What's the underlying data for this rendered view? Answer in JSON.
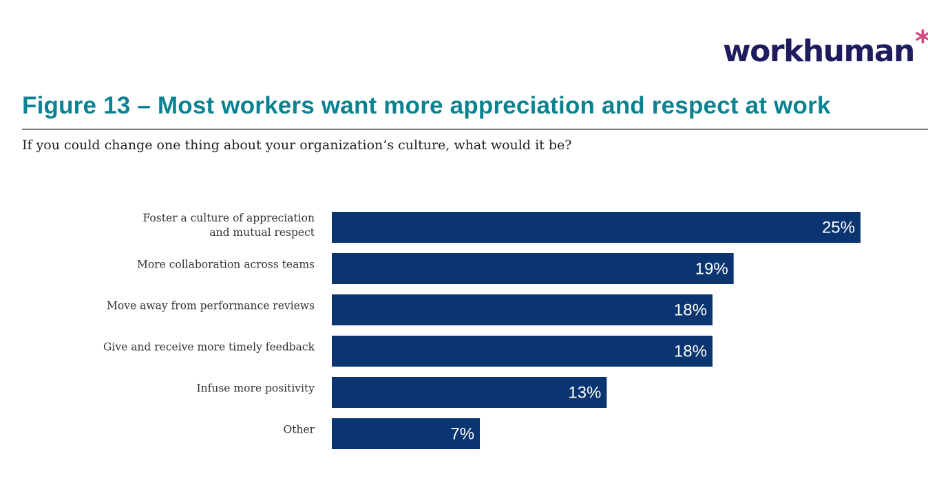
{
  "logo": {
    "text": "workhuman",
    "mark": "*"
  },
  "title": "Figure 13 – Most workers want more appreciation and respect at work",
  "subtitle": "If you could change one thing about your organization’s culture, what would it be?",
  "chart_data": {
    "type": "bar",
    "orientation": "horizontal",
    "categories": [
      [
        "Foster a culture of appreciation",
        "and mutual respect"
      ],
      [
        "More collaboration across teams"
      ],
      [
        "Move away from performance reviews"
      ],
      [
        "Give and receive more timely feedback"
      ],
      [
        "Infuse more positivity"
      ],
      [
        "Other"
      ]
    ],
    "values": [
      25,
      19,
      18,
      18,
      13,
      7
    ],
    "labels": [
      "25%",
      "19%",
      "18%",
      "18%",
      "13%",
      "7%"
    ],
    "unit": "%",
    "xlim": [
      0,
      25
    ],
    "grid": false,
    "bar_color": "#0b3570",
    "title_color": "#0a8291"
  }
}
